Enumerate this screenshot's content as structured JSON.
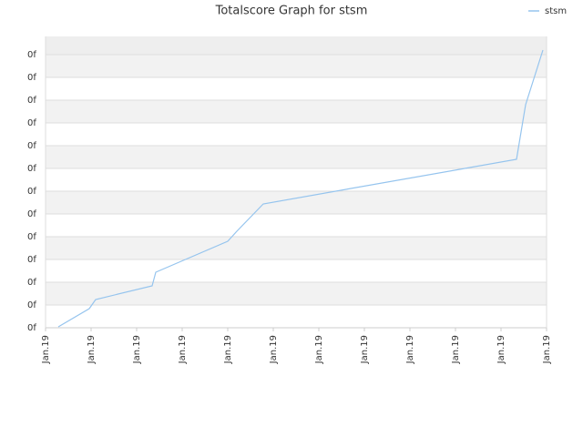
{
  "chart_data": {
    "type": "line",
    "title": "Totalscore Graph for stsm",
    "x": [
      0.28,
      0.96,
      1.1,
      2.34,
      2.42,
      4.0,
      4.2,
      4.78,
      10.34,
      10.54,
      10.92
    ],
    "series": [
      {
        "name": "stsm",
        "color": "#95c4ee",
        "values": [
          0.04,
          0.84,
          1.24,
          1.84,
          2.44,
          3.8,
          4.24,
          5.44,
          7.4,
          9.8,
          12.2
        ]
      }
    ],
    "xlim": [
      0,
      11
    ],
    "ylim": [
      0,
      12.8
    ],
    "xticks": [
      {
        "value": 0,
        "label": "Jan.19"
      },
      {
        "value": 1,
        "label": "Jan.19"
      },
      {
        "value": 2,
        "label": "Jan.19"
      },
      {
        "value": 3,
        "label": "Jan.19"
      },
      {
        "value": 4,
        "label": "Jan.19"
      },
      {
        "value": 5,
        "label": "Jan.19"
      },
      {
        "value": 6,
        "label": "Jan.19"
      },
      {
        "value": 7,
        "label": "Jan.19"
      },
      {
        "value": 8,
        "label": "Jan.19"
      },
      {
        "value": 9,
        "label": "Jan.19"
      },
      {
        "value": 10,
        "label": "Jan.19"
      },
      {
        "value": 11,
        "label": "Jan.19"
      }
    ],
    "yticks": [
      {
        "value": 0,
        "label": "0f"
      },
      {
        "value": 1,
        "label": "0f"
      },
      {
        "value": 2,
        "label": "0f"
      },
      {
        "value": 3,
        "label": "0f"
      },
      {
        "value": 4,
        "label": "0f"
      },
      {
        "value": 5,
        "label": "0f"
      },
      {
        "value": 6,
        "label": "0f"
      },
      {
        "value": 7,
        "label": "0f"
      },
      {
        "value": 8,
        "label": "0f"
      },
      {
        "value": 9,
        "label": "0f"
      },
      {
        "value": 10,
        "label": "0f"
      },
      {
        "value": 11,
        "label": "0f"
      },
      {
        "value": 12,
        "label": "0f"
      }
    ],
    "grid": true,
    "legend": "top-right"
  }
}
